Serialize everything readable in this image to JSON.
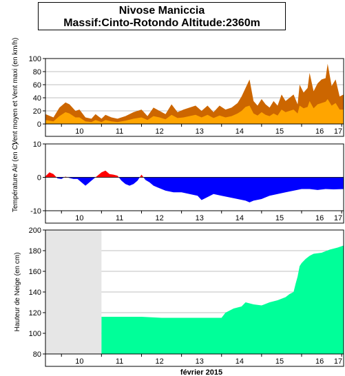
{
  "title": {
    "station": "Nivose Maniccia",
    "subtitle": "Massif:Cinto-Rotondo Altitude:2360m"
  },
  "colors": {
    "wind_avg": "#ffa500",
    "wind_max": "#cc6600",
    "temp_pos": "#ff0000",
    "temp_neg": "#0000ff",
    "snow": "#00ff99",
    "no_data": "#e6e6e6",
    "grid": "#aaaaaa"
  },
  "chart_data": [
    {
      "type": "area",
      "ylabel": "Vent moyen et Vent maxi (en km/h)",
      "ylim": [
        0,
        100
      ],
      "yticks": [
        0,
        20,
        40,
        60,
        80,
        100
      ],
      "x_domain": [
        9.6,
        17.05
      ],
      "xticks": [
        "10",
        "11",
        "12",
        "13",
        "14",
        "15",
        "16",
        "17"
      ],
      "series": [
        {
          "name": "Vent maxi",
          "x": [
            9.6,
            9.8,
            9.95,
            10.1,
            10.2,
            10.35,
            10.45,
            10.6,
            10.75,
            10.85,
            11.0,
            11.1,
            11.25,
            11.4,
            11.6,
            11.8,
            12.0,
            12.15,
            12.3,
            12.45,
            12.6,
            12.75,
            12.9,
            13.05,
            13.2,
            13.35,
            13.5,
            13.65,
            13.8,
            13.95,
            14.1,
            14.25,
            14.4,
            14.5,
            14.6,
            14.7,
            14.8,
            14.9,
            15.0,
            15.1,
            15.2,
            15.3,
            15.4,
            15.5,
            15.6,
            15.7,
            15.8,
            15.9,
            15.95,
            16.05,
            16.15,
            16.2,
            16.3,
            16.4,
            16.5,
            16.6,
            16.65,
            16.75,
            16.85,
            16.95,
            17.05
          ],
          "values": [
            15,
            10,
            25,
            33,
            30,
            20,
            22,
            10,
            8,
            15,
            8,
            14,
            10,
            8,
            12,
            18,
            22,
            12,
            25,
            20,
            15,
            30,
            18,
            22,
            25,
            28,
            20,
            28,
            18,
            28,
            22,
            25,
            32,
            42,
            55,
            68,
            35,
            28,
            38,
            30,
            25,
            35,
            28,
            45,
            35,
            40,
            45,
            30,
            60,
            48,
            55,
            78,
            50,
            62,
            68,
            70,
            92,
            58,
            68,
            42,
            45
          ]
        },
        {
          "name": "Vent moyen",
          "x": [
            9.6,
            9.8,
            9.95,
            10.1,
            10.2,
            10.35,
            10.45,
            10.6,
            10.75,
            10.85,
            11.0,
            11.1,
            11.25,
            11.4,
            11.6,
            11.8,
            12.0,
            12.15,
            12.3,
            12.45,
            12.6,
            12.75,
            12.9,
            13.05,
            13.2,
            13.35,
            13.5,
            13.65,
            13.8,
            13.95,
            14.1,
            14.25,
            14.4,
            14.5,
            14.6,
            14.7,
            14.8,
            14.9,
            15.0,
            15.1,
            15.2,
            15.3,
            15.4,
            15.5,
            15.6,
            15.7,
            15.8,
            15.9,
            15.95,
            16.05,
            16.15,
            16.2,
            16.3,
            16.4,
            16.5,
            16.6,
            16.65,
            16.75,
            16.85,
            16.95,
            17.05
          ],
          "values": [
            6,
            4,
            12,
            18,
            16,
            10,
            10,
            4,
            3,
            6,
            3,
            6,
            4,
            3,
            5,
            8,
            10,
            6,
            12,
            10,
            7,
            14,
            9,
            10,
            12,
            14,
            10,
            14,
            9,
            13,
            10,
            12,
            16,
            20,
            26,
            28,
            16,
            13,
            18,
            14,
            12,
            16,
            13,
            22,
            18,
            20,
            22,
            16,
            28,
            24,
            26,
            35,
            24,
            30,
            32,
            34,
            38,
            28,
            32,
            22,
            22
          ]
        }
      ]
    },
    {
      "type": "area",
      "ylabel": "Température Air (en C)",
      "ylim": [
        -10,
        10
      ],
      "yticks": [
        -10,
        0,
        10
      ],
      "x_domain": [
        9.6,
        17.05
      ],
      "xticks": [
        "10",
        "11",
        "12",
        "13",
        "14",
        "15",
        "16",
        "17"
      ],
      "series": [
        {
          "name": "Température",
          "x": [
            9.6,
            9.7,
            9.8,
            9.9,
            10.0,
            10.1,
            10.2,
            10.3,
            10.4,
            10.5,
            10.6,
            10.7,
            10.8,
            10.9,
            11.0,
            11.1,
            11.2,
            11.3,
            11.4,
            11.5,
            11.6,
            11.7,
            11.8,
            11.9,
            12.0,
            12.1,
            12.2,
            12.3,
            12.4,
            12.6,
            12.8,
            13.0,
            13.2,
            13.4,
            13.5,
            13.6,
            13.8,
            14.0,
            14.2,
            14.4,
            14.6,
            14.7,
            14.8,
            15.0,
            15.2,
            15.4,
            15.6,
            15.8,
            16.0,
            16.2,
            16.4,
            16.6,
            16.8,
            17.05
          ],
          "values": [
            0.3,
            1.5,
            1.0,
            -0.3,
            -0.5,
            0.2,
            -0.2,
            -0.5,
            -0.5,
            -1.5,
            -2.5,
            -1.5,
            -0.5,
            0.5,
            1.5,
            2.0,
            1.0,
            0.8,
            0.5,
            -1.0,
            -2.0,
            -2.5,
            -2.0,
            -1.0,
            0.8,
            -0.8,
            -1.5,
            -2.5,
            -3.0,
            -4.0,
            -4.5,
            -4.5,
            -5.0,
            -5.5,
            -6.8,
            -6.2,
            -5.0,
            -5.5,
            -6.0,
            -6.5,
            -7.0,
            -7.5,
            -7.0,
            -6.5,
            -5.5,
            -5.0,
            -4.5,
            -4.0,
            -3.5,
            -3.5,
            -3.8,
            -3.5,
            -3.6,
            -3.5
          ]
        }
      ]
    },
    {
      "type": "area",
      "ylabel": "Hauteur de Neige (en cm)",
      "ylim": [
        80,
        200
      ],
      "yticks": [
        80,
        100,
        120,
        140,
        160,
        180,
        200
      ],
      "x_domain": [
        9.6,
        17.05
      ],
      "xticks": [
        "10",
        "11",
        "12",
        "13",
        "14",
        "15",
        "16",
        "17"
      ],
      "xlabel": "février 2015",
      "no_data_until": 11.0,
      "series": [
        {
          "name": "Hauteur de neige",
          "x": [
            11.0,
            11.5,
            12.0,
            12.5,
            13.0,
            13.5,
            14.0,
            14.1,
            14.3,
            14.5,
            14.6,
            14.8,
            15.0,
            15.2,
            15.4,
            15.6,
            15.7,
            15.8,
            15.85,
            15.9,
            15.95,
            16.0,
            16.1,
            16.2,
            16.3,
            16.5,
            16.7,
            16.9,
            17.05
          ],
          "values": [
            116,
            116,
            116,
            115,
            115,
            115,
            115,
            120,
            124,
            126,
            130,
            128,
            127,
            130,
            132,
            135,
            138,
            140,
            148,
            155,
            165,
            168,
            172,
            175,
            177,
            178,
            181,
            183,
            185
          ]
        }
      ]
    }
  ]
}
